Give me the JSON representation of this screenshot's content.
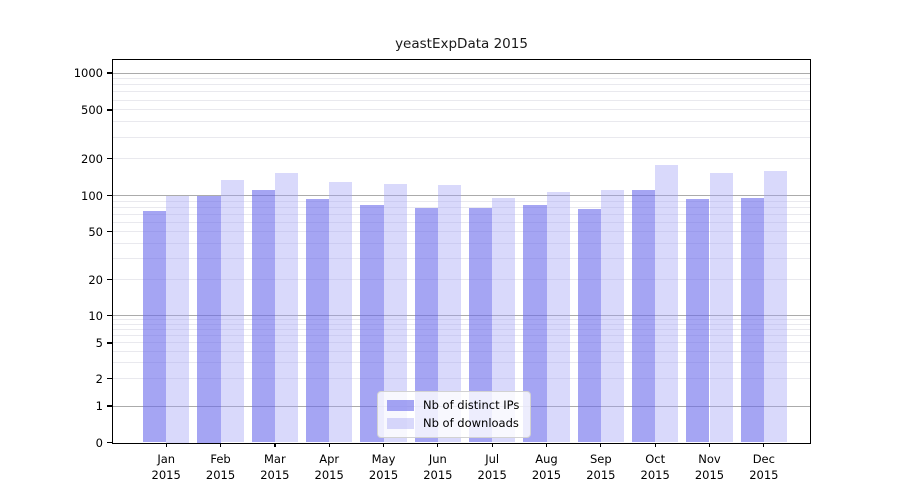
{
  "title": "yeastExpData 2015",
  "legend": {
    "items": [
      {
        "label": "Nb of distinct IPs"
      },
      {
        "label": "Nb of downloads"
      }
    ]
  },
  "colors": {
    "distinct_ips_bar": "rgba(105,105,235,0.6)",
    "downloads_bar": "rgba(160,160,245,0.4)",
    "major_gridline": "#ababab",
    "minor_gridline": "#e9e9ee",
    "axis": "#000000"
  },
  "chart_data": {
    "type": "bar",
    "title": "yeastExpData 2015",
    "categories": [
      "Jan 2015",
      "Feb 2015",
      "Mar 2015",
      "Apr 2015",
      "May 2015",
      "Jun 2015",
      "Jul 2015",
      "Aug 2015",
      "Sep 2015",
      "Oct 2015",
      "Nov 2015",
      "Dec 2015"
    ],
    "series": [
      {
        "name": "Nb of distinct IPs",
        "color": "rgba(105,105,235,0.6)",
        "values": [
          75,
          100,
          110,
          93,
          84,
          78,
          79,
          84,
          77,
          110,
          94,
          95
        ]
      },
      {
        "name": "Nb of downloads",
        "color": "rgba(160,160,245,0.4)",
        "values": [
          100,
          134,
          152,
          129,
          125,
          122,
          96,
          106,
          110,
          178,
          153,
          159
        ]
      }
    ],
    "xlabel": "",
    "ylabel": "",
    "y_ticks": [
      0,
      1,
      2,
      5,
      10,
      20,
      50,
      100,
      200,
      500,
      1000
    ],
    "y_scale": "log (symlog-like, linear below 1)",
    "ylim": [
      0,
      1400
    ],
    "grid": true,
    "legend_position": "inside bottom-center"
  }
}
